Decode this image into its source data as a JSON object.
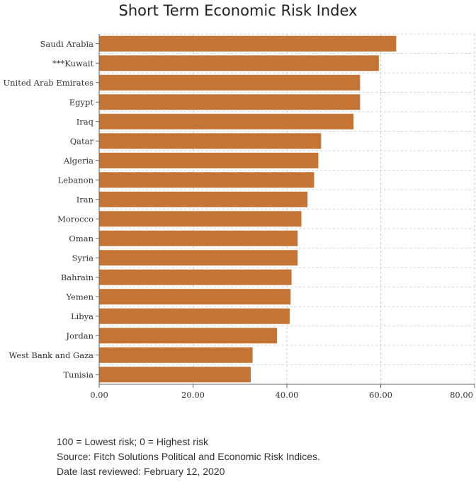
{
  "chart_data": {
    "type": "bar",
    "orientation": "horizontal",
    "title": "Short Term Economic Risk Index",
    "categories": [
      "Saudi Arabia",
      "***Kuwait",
      "United Arab Emirates",
      "Egypt",
      "Iraq",
      "Qatar",
      "Algeria",
      "Lebanon",
      "Iran",
      "Morocco",
      "Oman",
      "Syria",
      "Bahrain",
      "Yemen",
      "Libya",
      "Jordan",
      "West Bank and Gaza",
      "Tunisia"
    ],
    "values": [
      63.3,
      59.6,
      55.6,
      55.6,
      54.2,
      47.3,
      46.7,
      45.8,
      44.4,
      43.1,
      42.3,
      42.3,
      41.0,
      40.8,
      40.6,
      37.9,
      32.7,
      32.3
    ],
    "xlim": [
      0,
      80
    ],
    "xticks": [
      "0.00",
      "20.00",
      "40.00",
      "60.00",
      "80.00"
    ],
    "xlabel": "",
    "ylabel": "",
    "grid": true,
    "bar_color": "#c47535"
  },
  "footnotes": [
    "100 = Lowest risk; 0 = Highest risk",
    "Source: Fitch Solutions Political and Economic Risk Indices.",
    "Date last reviewed: February 12, 2020"
  ]
}
